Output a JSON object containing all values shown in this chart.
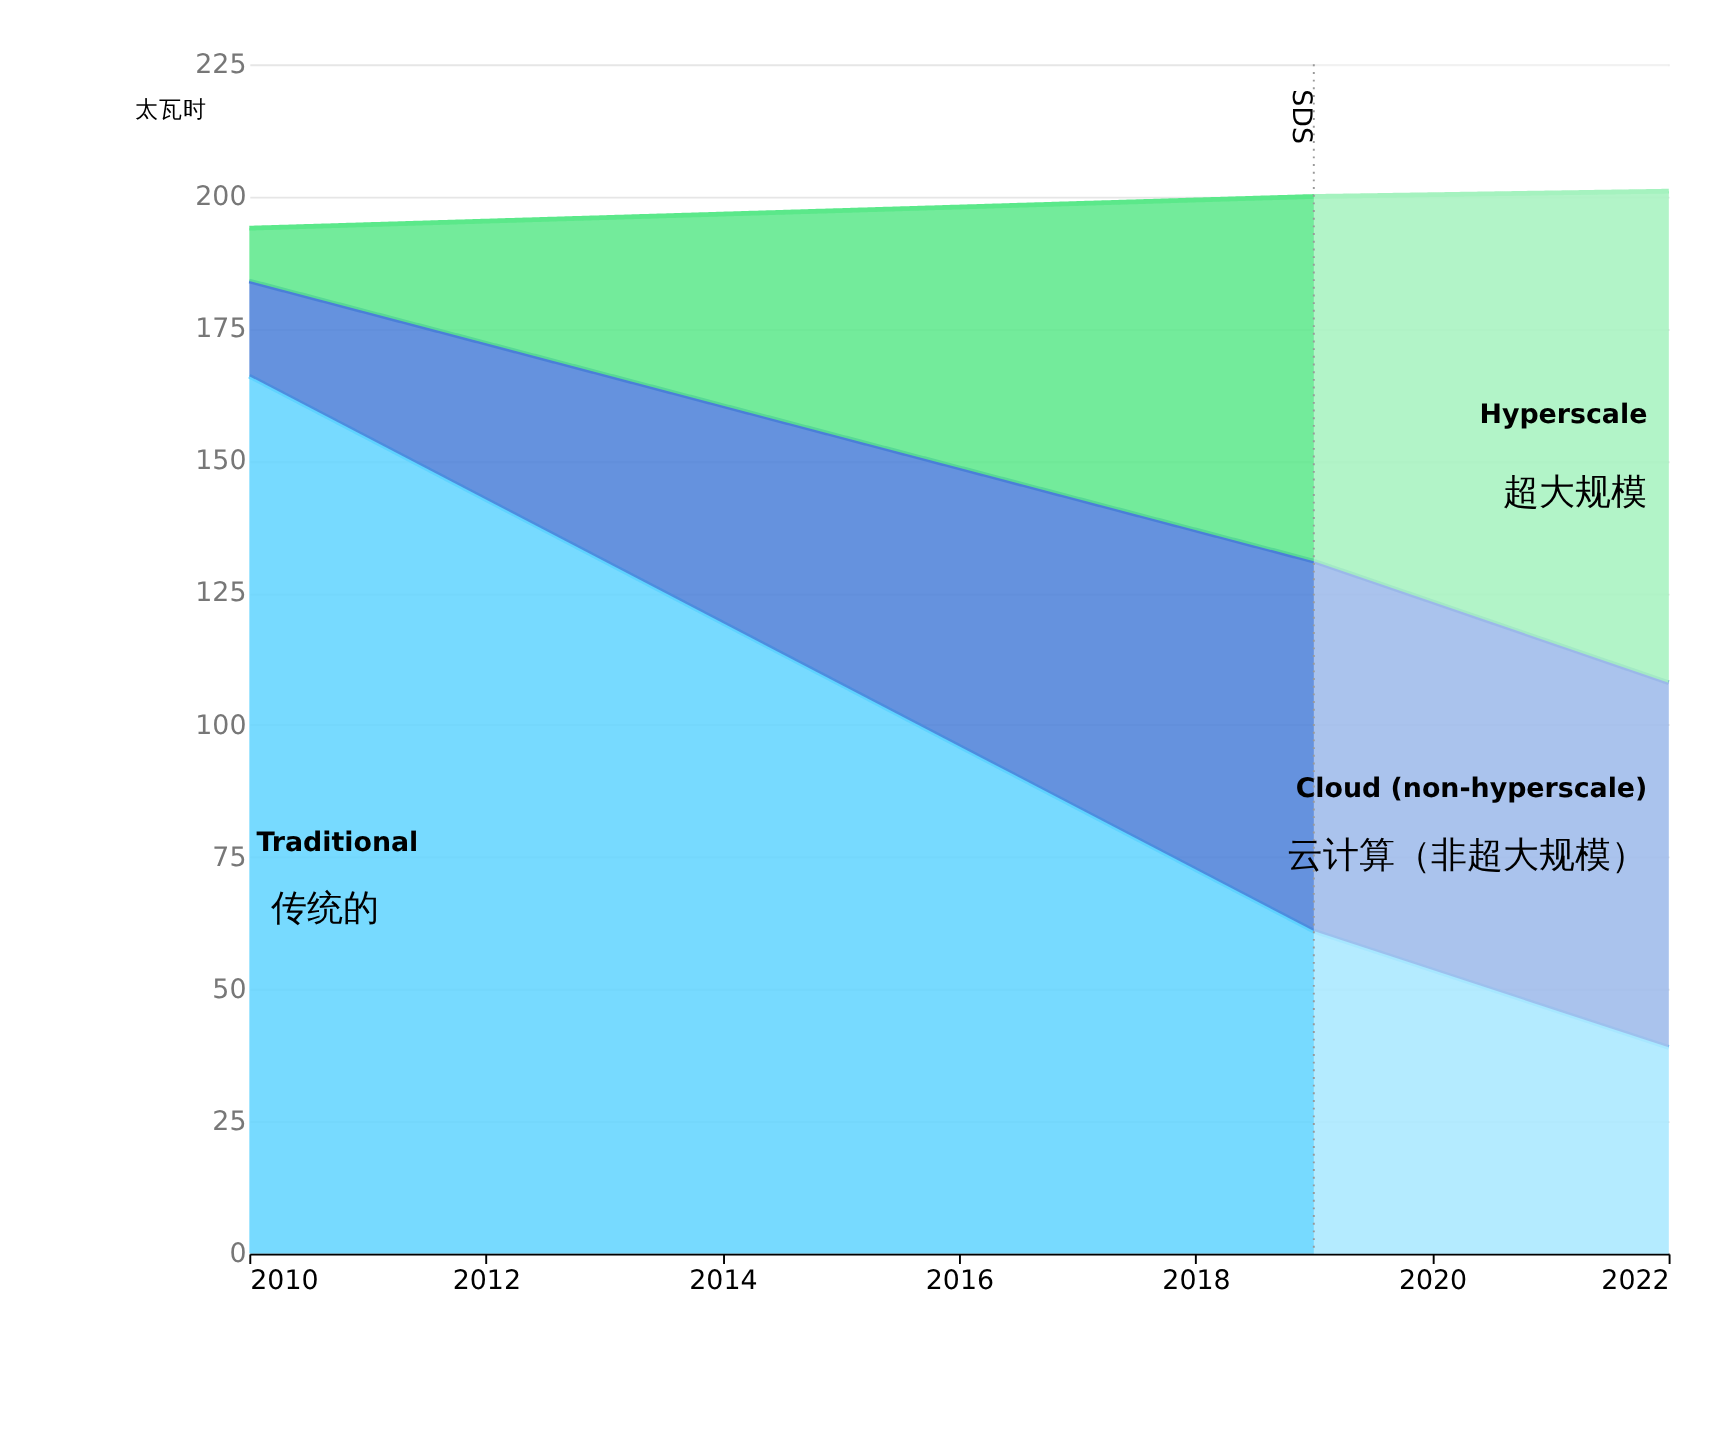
{
  "chart_data": {
    "type": "area",
    "stacked": true,
    "ylabel": "太瓦时",
    "x": [
      2010,
      2019,
      2022
    ],
    "series": [
      {
        "values": [
          166,
          61,
          39
        ],
        "color": "#5fd3ff"
      },
      {
        "values": [
          18,
          70,
          69
        ],
        "color": "#4a7fd8"
      },
      {
        "values": [
          10,
          69,
          93
        ],
        "color": "#5be88a"
      }
    ],
    "xlim": [
      2010,
      2022
    ],
    "xticks": [
      2010,
      2012,
      2014,
      2016,
      2018,
      2020,
      2022
    ],
    "ylim": [
      0,
      225
    ],
    "yticks": [
      0,
      25,
      50,
      75,
      100,
      125,
      150,
      175,
      200,
      225
    ],
    "grid": "y",
    "line_style": "solid",
    "ref_lines": [
      {
        "axis": "x",
        "value": 2019,
        "label": "SDS",
        "color": "#999999",
        "line_style": "dotted"
      }
    ],
    "bands": [
      {
        "axis": "x",
        "from": 2019,
        "to": 2022,
        "color": "#ffffff"
      }
    ],
    "annotations": [
      "Traditional",
      "传统的",
      "Cloud (non-hyperscale)",
      "云计算（非超大规模）",
      "Hyperscale",
      "超大规模"
    ]
  }
}
